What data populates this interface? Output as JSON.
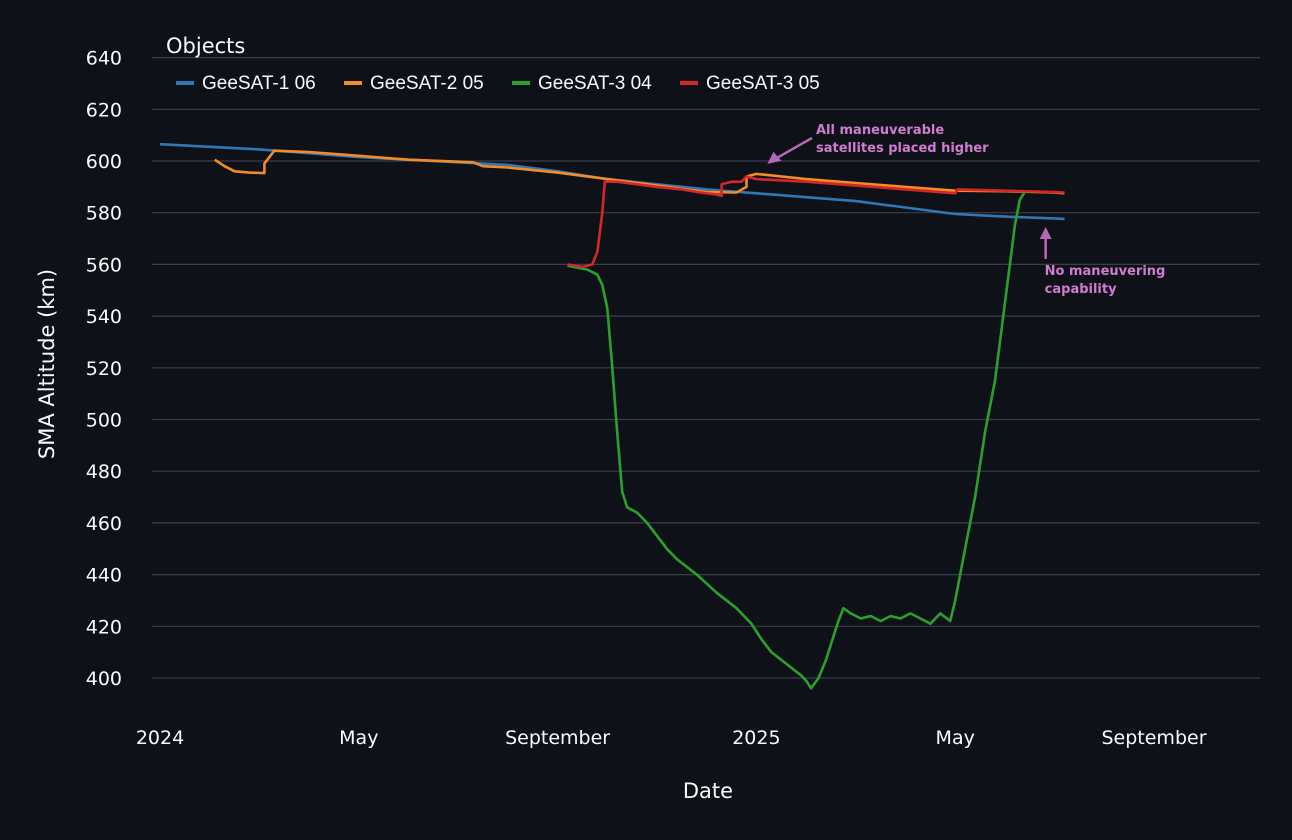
{
  "chart_data": {
    "type": "line",
    "xlabel": "Date",
    "ylabel": "SMA Altitude (km)",
    "ylim": [
      392,
      646
    ],
    "yticks": [
      400,
      420,
      440,
      460,
      480,
      500,
      520,
      540,
      560,
      580,
      600,
      620,
      640
    ],
    "xticks": [
      {
        "label": "2024",
        "t": 0
      },
      {
        "label": "May",
        "t": 4
      },
      {
        "label": "September",
        "t": 8
      },
      {
        "label": "2025",
        "t": 12
      },
      {
        "label": "May",
        "t": 16
      },
      {
        "label": "September",
        "t": 20
      }
    ],
    "legend_title": "Objects",
    "series": [
      {
        "name": "GeeSAT-1 06",
        "color": "#2f78b7",
        "points": [
          [
            0,
            606.5
          ],
          [
            1,
            605.5
          ],
          [
            2,
            604.5
          ],
          [
            3,
            603
          ],
          [
            4,
            601.5
          ],
          [
            5,
            600.5
          ],
          [
            6,
            599.5
          ],
          [
            7,
            598.5
          ],
          [
            8,
            596
          ],
          [
            9,
            593
          ],
          [
            10,
            591
          ],
          [
            11,
            589
          ],
          [
            12,
            587.5
          ],
          [
            13,
            586
          ],
          [
            14,
            584.5
          ],
          [
            15,
            582
          ],
          [
            16,
            579.5
          ],
          [
            17,
            578.5
          ],
          [
            18,
            577.8
          ],
          [
            18.2,
            577.6
          ]
        ]
      },
      {
        "name": "GeeSAT-2 05",
        "color": "#f58b24",
        "points": [
          [
            1.1,
            600.5
          ],
          [
            1.3,
            598
          ],
          [
            1.5,
            596
          ],
          [
            1.8,
            595.5
          ],
          [
            2.1,
            595.3
          ],
          [
            2.1,
            599
          ],
          [
            2.3,
            604
          ],
          [
            3,
            603.5
          ],
          [
            4,
            602
          ],
          [
            5,
            600.5
          ],
          [
            6.3,
            599.5
          ],
          [
            6.5,
            598
          ],
          [
            7,
            597.5
          ],
          [
            8,
            595.5
          ],
          [
            9,
            593
          ],
          [
            10,
            590.5
          ],
          [
            11,
            588
          ],
          [
            11.6,
            587.8
          ],
          [
            11.8,
            590
          ],
          [
            11.8,
            594
          ],
          [
            12,
            595
          ],
          [
            13,
            593
          ],
          [
            14,
            591.5
          ],
          [
            15,
            590
          ],
          [
            16,
            588.5
          ],
          [
            17,
            588.3
          ],
          [
            18,
            587.8
          ],
          [
            18.2,
            587.5
          ]
        ]
      },
      {
        "name": "GeeSAT-3 04",
        "color": "#2ca02c",
        "points": [
          [
            8.2,
            559.5
          ],
          [
            8.6,
            558
          ],
          [
            8.8,
            556
          ],
          [
            8.9,
            552
          ],
          [
            9.0,
            543
          ],
          [
            9.1,
            520
          ],
          [
            9.2,
            495
          ],
          [
            9.3,
            472
          ],
          [
            9.4,
            466
          ],
          [
            9.6,
            464
          ],
          [
            9.8,
            460
          ],
          [
            10.0,
            455
          ],
          [
            10.2,
            450
          ],
          [
            10.4,
            446
          ],
          [
            10.8,
            440
          ],
          [
            11.2,
            433
          ],
          [
            11.6,
            427
          ],
          [
            11.9,
            421
          ],
          [
            12.1,
            415
          ],
          [
            12.3,
            410
          ],
          [
            12.5,
            407
          ],
          [
            12.7,
            404
          ],
          [
            12.9,
            401
          ],
          [
            13.0,
            399
          ],
          [
            13.1,
            396
          ],
          [
            13.25,
            400
          ],
          [
            13.4,
            407
          ],
          [
            13.55,
            416
          ],
          [
            13.65,
            422
          ],
          [
            13.75,
            427
          ],
          [
            13.9,
            425
          ],
          [
            14.1,
            423
          ],
          [
            14.3,
            424
          ],
          [
            14.5,
            422
          ],
          [
            14.7,
            424
          ],
          [
            14.9,
            423
          ],
          [
            15.1,
            425
          ],
          [
            15.3,
            423
          ],
          [
            15.5,
            421
          ],
          [
            15.7,
            425
          ],
          [
            15.9,
            422
          ],
          [
            16.0,
            430
          ],
          [
            16.2,
            450
          ],
          [
            16.4,
            470
          ],
          [
            16.6,
            495
          ],
          [
            16.8,
            515
          ],
          [
            17.0,
            545
          ],
          [
            17.1,
            560
          ],
          [
            17.2,
            575
          ],
          [
            17.3,
            585
          ],
          [
            17.4,
            588
          ]
        ]
      },
      {
        "name": "GeeSAT-3 05",
        "color": "#d62728",
        "points": [
          [
            8.2,
            560
          ],
          [
            8.5,
            559
          ],
          [
            8.7,
            560
          ],
          [
            8.8,
            565
          ],
          [
            8.9,
            580
          ],
          [
            8.95,
            592
          ],
          [
            9.2,
            592
          ],
          [
            10,
            590
          ],
          [
            10.5,
            589
          ],
          [
            10.8,
            588
          ],
          [
            11.2,
            587
          ],
          [
            11.3,
            586.5
          ],
          [
            11.3,
            591
          ],
          [
            11.5,
            592
          ],
          [
            11.7,
            592
          ],
          [
            11.8,
            594
          ],
          [
            12,
            593
          ],
          [
            13,
            592
          ],
          [
            14,
            590.5
          ],
          [
            15,
            589
          ],
          [
            16,
            587.5
          ],
          [
            16.05,
            589
          ],
          [
            17,
            588.5
          ],
          [
            18,
            588
          ],
          [
            18.2,
            587.8
          ]
        ]
      }
    ],
    "annotations": [
      {
        "lines": [
          "All maneuverable",
          "satellites placed higher"
        ],
        "target_t": 12.1,
        "target_y": 595
      },
      {
        "lines": [
          "No maneuvering",
          "capability"
        ],
        "target_t": 17.8,
        "target_y": 576
      }
    ]
  }
}
